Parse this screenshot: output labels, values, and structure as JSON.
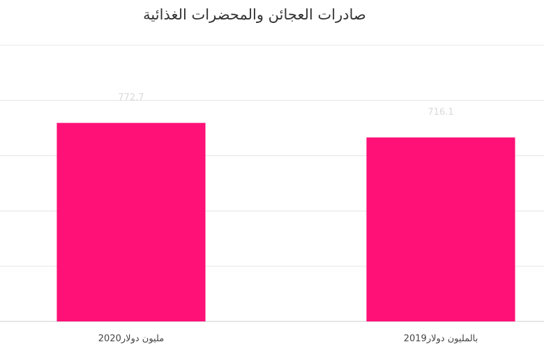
{
  "chart_data": {
    "type": "bar",
    "title": "صادرات العجائن والمحضرات الغذائية",
    "categories": [
      "مليون دولار2020",
      "بالمليون دولار2019"
    ],
    "values": [
      772.7,
      716.1
    ],
    "color": "#ff1178",
    "ylim": [
      0,
      1075
    ],
    "yticks": [
      0,
      215,
      430,
      645,
      860,
      1075
    ],
    "grid": true
  }
}
